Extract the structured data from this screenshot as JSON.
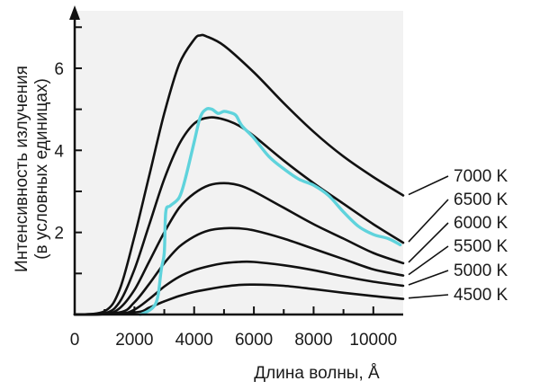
{
  "chart_data": {
    "type": "line",
    "xlabel": "Длина волны, Å",
    "ylabel_line1": "Интенсивность излучения",
    "ylabel_line2": "(в условных единицах)",
    "xlim": [
      0,
      11000
    ],
    "ylim": [
      0,
      7.4
    ],
    "xticks": [
      0,
      2000,
      4000,
      6000,
      8000,
      10000
    ],
    "xtick_labels": [
      "0",
      "2000",
      "4000",
      "6000",
      "8000",
      "10000"
    ],
    "yticks": [
      2,
      4,
      6
    ],
    "ytick_labels": [
      "2",
      "4",
      "6"
    ],
    "grid": false,
    "colors": {
      "background": "#f2f2f2",
      "blackbody": "#111111",
      "sun": "#5fd3dc"
    },
    "series": [
      {
        "name": "7000 K",
        "color": "#111111",
        "x": [
          0,
          1000,
          1500,
          2000,
          2500,
          3000,
          3500,
          4000,
          4200,
          4400,
          5000,
          6000,
          7000,
          8000,
          9000,
          10000,
          11000
        ],
        "y": [
          0,
          0.08,
          0.6,
          1.9,
          3.4,
          4.9,
          6.1,
          6.7,
          6.8,
          6.78,
          6.55,
          5.9,
          5.15,
          4.45,
          3.85,
          3.35,
          2.9
        ]
      },
      {
        "name": "6500 K",
        "color": "#111111",
        "x": [
          0,
          1000,
          1500,
          2000,
          2500,
          3000,
          3500,
          4000,
          4500,
          5000,
          5500,
          6000,
          7000,
          8000,
          9000,
          10000,
          11000
        ],
        "y": [
          0,
          0.03,
          0.3,
          1.1,
          2.2,
          3.3,
          4.15,
          4.65,
          4.8,
          4.75,
          4.6,
          4.35,
          3.75,
          3.2,
          2.7,
          2.2,
          1.75
        ]
      },
      {
        "name": "6000 K",
        "color": "#111111",
        "x": [
          0,
          1000,
          1500,
          2000,
          2500,
          3000,
          3500,
          4000,
          4500,
          5000,
          5500,
          6000,
          7000,
          8000,
          9000,
          10000,
          11000
        ],
        "y": [
          0,
          0.01,
          0.15,
          0.6,
          1.3,
          2.0,
          2.6,
          2.95,
          3.15,
          3.2,
          3.15,
          3.0,
          2.6,
          2.2,
          1.85,
          1.5,
          1.25
        ]
      },
      {
        "name": "5500 K",
        "color": "#111111",
        "x": [
          0,
          1500,
          2000,
          2500,
          3000,
          3500,
          4000,
          4500,
          5000,
          5500,
          6000,
          7000,
          8000,
          9000,
          10000,
          11000
        ],
        "y": [
          0,
          0.05,
          0.3,
          0.75,
          1.25,
          1.65,
          1.9,
          2.05,
          2.1,
          2.1,
          2.05,
          1.85,
          1.6,
          1.35,
          1.1,
          0.95
        ]
      },
      {
        "name": "5000 K",
        "color": "#111111",
        "x": [
          0,
          1500,
          2000,
          2500,
          3000,
          3500,
          4000,
          4500,
          5000,
          5500,
          6000,
          7000,
          8000,
          9000,
          10000,
          11000
        ],
        "y": [
          0,
          0.02,
          0.12,
          0.38,
          0.68,
          0.92,
          1.08,
          1.18,
          1.25,
          1.28,
          1.28,
          1.2,
          1.08,
          0.93,
          0.8,
          0.7
        ]
      },
      {
        "name": "4500 K",
        "color": "#111111",
        "x": [
          0,
          2000,
          2500,
          3000,
          3500,
          4000,
          4500,
          5000,
          5500,
          6000,
          7000,
          8000,
          9000,
          10000,
          11000
        ],
        "y": [
          0,
          0.05,
          0.17,
          0.32,
          0.45,
          0.55,
          0.62,
          0.68,
          0.72,
          0.73,
          0.7,
          0.62,
          0.53,
          0.45,
          0.38
        ]
      },
      {
        "name": "",
        "color": "#5fd3dc",
        "x": [
          2200,
          2500,
          2700,
          2800,
          2900,
          3000,
          3050,
          3200,
          3500,
          3700,
          4000,
          4200,
          4400,
          4600,
          4800,
          5000,
          5200,
          5400,
          5600,
          6000,
          6500,
          7000,
          7500,
          8000,
          8500,
          9000,
          9500,
          10000,
          10500,
          10900
        ],
        "y": [
          0,
          0.1,
          0.25,
          0.5,
          1.1,
          1.5,
          2.5,
          2.65,
          2.85,
          3.3,
          4.2,
          4.8,
          5.0,
          5.0,
          4.9,
          4.95,
          4.92,
          4.85,
          4.6,
          4.3,
          3.85,
          3.55,
          3.3,
          3.15,
          2.9,
          2.5,
          2.15,
          1.95,
          1.85,
          1.7
        ]
      }
    ],
    "legend": [
      "7000 K",
      "6500 K",
      "6000 K",
      "5500 K",
      "5000 K",
      "4500 K"
    ],
    "legend_placement": "right"
  }
}
